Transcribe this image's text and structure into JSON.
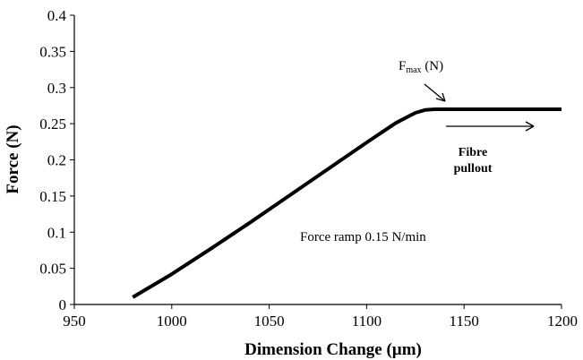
{
  "chart_data": {
    "type": "line",
    "title": "",
    "xlabel": "Dimension Change (µm)",
    "ylabel": "Force (N)",
    "xlim": [
      950,
      1200
    ],
    "ylim": [
      0,
      0.4
    ],
    "x_ticks": [
      950,
      1000,
      1050,
      1100,
      1150,
      1200
    ],
    "y_ticks": [
      0,
      0.05,
      0.1,
      0.15,
      0.2,
      0.25,
      0.3,
      0.35,
      0.4
    ],
    "x_tick_labels": [
      "950",
      "1000",
      "1050",
      "1100",
      "1150",
      "1200"
    ],
    "y_tick_labels": [
      "0",
      "0.05",
      "0.1",
      "0.15",
      "0.2",
      "0.25",
      "0.3",
      "0.35",
      "0.4"
    ],
    "grid": false,
    "legend": "none",
    "series": [
      {
        "color": "#000000",
        "x": [
          980,
          1000,
          1020,
          1040,
          1060,
          1080,
          1100,
          1115,
          1125,
          1130,
          1135,
          1140,
          1150,
          1175,
          1200
        ],
        "y": [
          0.01,
          0.042,
          0.077,
          0.113,
          0.15,
          0.187,
          0.224,
          0.251,
          0.265,
          0.269,
          0.27,
          0.27,
          0.27,
          0.27,
          0.27
        ]
      }
    ],
    "annotations": {
      "fmax_base": "F",
      "fmax_sub": "max",
      "fmax_unit": " (N)",
      "pullout_line1": "Fibre",
      "pullout_line2": "pullout",
      "ramp_label": "Force ramp 0.15 N/min"
    }
  }
}
